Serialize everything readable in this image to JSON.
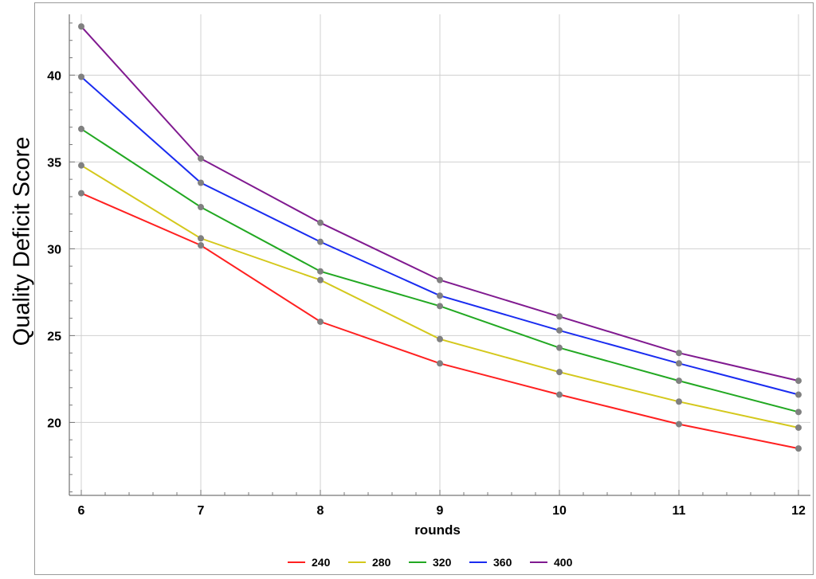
{
  "chart_data": {
    "type": "line",
    "xlabel": "rounds",
    "ylabel": "Quality Deficit Score",
    "x": [
      6,
      7,
      8,
      9,
      10,
      11,
      12
    ],
    "xlim": [
      5.9,
      12.1
    ],
    "ylim": [
      15.8,
      43.5
    ],
    "xticks": [
      6,
      7,
      8,
      9,
      10,
      11,
      12
    ],
    "yticks": [
      20,
      25,
      30,
      35,
      40
    ],
    "grid": true,
    "legend_position": "bottom",
    "marker_color": "#808080",
    "series": [
      {
        "name": "240",
        "color": "#ff2020",
        "values": [
          33.2,
          30.2,
          25.8,
          23.4,
          21.6,
          19.9,
          18.5
        ]
      },
      {
        "name": "280",
        "color": "#d4c81c",
        "values": [
          34.8,
          30.6,
          28.2,
          24.8,
          22.9,
          21.2,
          19.7
        ]
      },
      {
        "name": "320",
        "color": "#22a822",
        "values": [
          36.9,
          32.4,
          28.7,
          26.7,
          24.3,
          22.4,
          20.6
        ]
      },
      {
        "name": "360",
        "color": "#1a2cf0",
        "values": [
          39.9,
          33.8,
          30.4,
          27.3,
          25.3,
          23.4,
          21.6
        ]
      },
      {
        "name": "400",
        "color": "#801a90",
        "values": [
          42.8,
          35.2,
          31.5,
          28.2,
          26.1,
          24.0,
          22.4
        ]
      }
    ]
  }
}
